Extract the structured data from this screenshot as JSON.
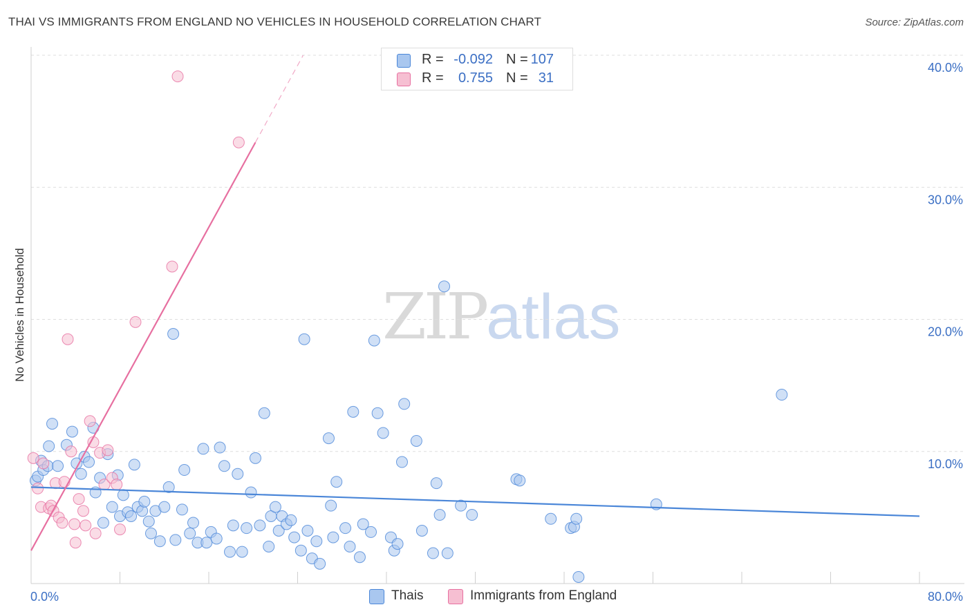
{
  "title": "THAI VS IMMIGRANTS FROM ENGLAND NO VEHICLES IN HOUSEHOLD CORRELATION CHART",
  "source": "Source: ZipAtlas.com",
  "watermark": {
    "zip": "ZIP",
    "atlas": "atlas"
  },
  "colors": {
    "blue": "#4a86d8",
    "blue_fill": "#a9c7ef",
    "pink": "#e76fa0",
    "pink_fill": "#f6bfd2",
    "axis_text": "#3b6fc4"
  },
  "legend": {
    "rows": [
      {
        "r_label": "R =",
        "r_value": "-0.092",
        "n_label": "N =",
        "n_value": "107"
      },
      {
        "r_label": "R =",
        "r_value": "0.755",
        "n_label": "N =",
        "n_value": "31"
      }
    ]
  },
  "bottom_legend": {
    "series1": "Thais",
    "series2": "Immigrants from England"
  },
  "chart_data": {
    "type": "scatter",
    "title": "THAI VS IMMIGRANTS FROM ENGLAND NO VEHICLES IN HOUSEHOLD CORRELATION CHART",
    "xlabel": "",
    "ylabel": "No Vehicles in Household",
    "xlim": [
      0,
      80
    ],
    "ylim": [
      0,
      40
    ],
    "x_tick_labels": [
      "0.0%",
      "80.0%"
    ],
    "y_ticks": [
      {
        "value": 10,
        "label": "10.0%"
      },
      {
        "value": 20,
        "label": "20.0%"
      },
      {
        "value": 30,
        "label": "30.0%"
      },
      {
        "value": 40,
        "label": "40.0%"
      }
    ],
    "series": [
      {
        "name": "Thais",
        "color": "#4a86d8",
        "points": [
          [
            0.4,
            7.8
          ],
          [
            0.6,
            8.1
          ],
          [
            0.9,
            9.3
          ],
          [
            1.1,
            8.6
          ],
          [
            1.6,
            10.4
          ],
          [
            1.9,
            12.1
          ],
          [
            1.5,
            8.9
          ],
          [
            2.4,
            8.9
          ],
          [
            3.2,
            10.5
          ],
          [
            3.7,
            11.5
          ],
          [
            4.1,
            9.1
          ],
          [
            4.5,
            8.3
          ],
          [
            4.8,
            9.6
          ],
          [
            5.2,
            9.2
          ],
          [
            5.6,
            11.8
          ],
          [
            5.8,
            6.9
          ],
          [
            6.5,
            4.6
          ],
          [
            6.9,
            9.8
          ],
          [
            7.3,
            5.8
          ],
          [
            6.2,
            8.0
          ],
          [
            7.8,
            8.2
          ],
          [
            8.0,
            5.1
          ],
          [
            8.3,
            6.7
          ],
          [
            8.7,
            5.4
          ],
          [
            9.0,
            5.1
          ],
          [
            9.3,
            9.0
          ],
          [
            9.6,
            5.8
          ],
          [
            10.0,
            5.5
          ],
          [
            10.2,
            6.2
          ],
          [
            10.6,
            4.7
          ],
          [
            10.8,
            3.8
          ],
          [
            11.2,
            5.5
          ],
          [
            11.6,
            3.2
          ],
          [
            12.0,
            5.8
          ],
          [
            12.4,
            7.3
          ],
          [
            12.8,
            18.9
          ],
          [
            13.0,
            3.3
          ],
          [
            13.6,
            5.6
          ],
          [
            13.8,
            8.6
          ],
          [
            14.3,
            3.8
          ],
          [
            14.6,
            4.6
          ],
          [
            15.0,
            3.1
          ],
          [
            15.5,
            10.2
          ],
          [
            15.8,
            3.1
          ],
          [
            16.2,
            3.9
          ],
          [
            16.7,
            3.4
          ],
          [
            17.0,
            10.3
          ],
          [
            17.4,
            8.9
          ],
          [
            17.9,
            2.4
          ],
          [
            18.2,
            4.4
          ],
          [
            18.6,
            8.3
          ],
          [
            19.0,
            2.4
          ],
          [
            19.4,
            4.2
          ],
          [
            19.8,
            6.9
          ],
          [
            20.2,
            9.5
          ],
          [
            20.6,
            4.4
          ],
          [
            21.0,
            12.9
          ],
          [
            21.4,
            2.8
          ],
          [
            21.6,
            5.1
          ],
          [
            22.0,
            5.8
          ],
          [
            22.3,
            4.0
          ],
          [
            22.6,
            5.1
          ],
          [
            23.0,
            4.5
          ],
          [
            23.4,
            4.8
          ],
          [
            23.7,
            3.5
          ],
          [
            24.3,
            2.5
          ],
          [
            24.6,
            18.5
          ],
          [
            24.9,
            4.0
          ],
          [
            25.3,
            1.9
          ],
          [
            25.7,
            3.2
          ],
          [
            26.0,
            1.5
          ],
          [
            26.8,
            11.0
          ],
          [
            27.0,
            5.9
          ],
          [
            27.2,
            3.5
          ],
          [
            27.5,
            7.7
          ],
          [
            28.3,
            4.2
          ],
          [
            28.7,
            2.8
          ],
          [
            29.0,
            13.0
          ],
          [
            29.6,
            2.0
          ],
          [
            29.9,
            4.5
          ],
          [
            30.6,
            3.9
          ],
          [
            30.9,
            18.4
          ],
          [
            31.2,
            12.9
          ],
          [
            31.7,
            11.4
          ],
          [
            32.4,
            3.5
          ],
          [
            32.7,
            2.5
          ],
          [
            33.0,
            3.0
          ],
          [
            33.4,
            9.2
          ],
          [
            33.6,
            13.6
          ],
          [
            34.7,
            10.8
          ],
          [
            35.2,
            4.0
          ],
          [
            36.2,
            2.3
          ],
          [
            36.5,
            7.6
          ],
          [
            36.8,
            5.2
          ],
          [
            37.2,
            22.5
          ],
          [
            37.5,
            2.3
          ],
          [
            38.7,
            5.9
          ],
          [
            39.7,
            5.2
          ],
          [
            43.7,
            7.9
          ],
          [
            46.8,
            4.9
          ],
          [
            48.6,
            4.2
          ],
          [
            48.9,
            4.3
          ],
          [
            49.1,
            4.9
          ],
          [
            49.3,
            0.5
          ],
          [
            56.3,
            6.0
          ],
          [
            67.6,
            14.3
          ],
          [
            44.0,
            7.8
          ]
        ],
        "trend": {
          "x": [
            0,
            80
          ],
          "y": [
            7.3,
            5.1
          ]
        }
      },
      {
        "name": "Immigrants from England",
        "color": "#e76fa0",
        "points": [
          [
            0.2,
            9.5
          ],
          [
            0.6,
            7.2
          ],
          [
            0.9,
            5.8
          ],
          [
            1.1,
            9.1
          ],
          [
            1.6,
            5.7
          ],
          [
            1.8,
            5.9
          ],
          [
            2.0,
            5.5
          ],
          [
            2.2,
            7.6
          ],
          [
            2.5,
            5.0
          ],
          [
            2.8,
            4.6
          ],
          [
            3.0,
            7.7
          ],
          [
            3.3,
            18.5
          ],
          [
            3.6,
            10.0
          ],
          [
            3.9,
            4.5
          ],
          [
            4.0,
            3.1
          ],
          [
            4.3,
            6.4
          ],
          [
            4.7,
            5.5
          ],
          [
            4.9,
            4.4
          ],
          [
            5.3,
            12.3
          ],
          [
            5.6,
            10.7
          ],
          [
            5.8,
            3.8
          ],
          [
            6.2,
            9.9
          ],
          [
            6.6,
            7.5
          ],
          [
            6.9,
            10.1
          ],
          [
            7.3,
            8.0
          ],
          [
            7.7,
            7.5
          ],
          [
            8.0,
            4.1
          ],
          [
            9.4,
            19.8
          ],
          [
            12.7,
            24.0
          ],
          [
            13.2,
            38.4
          ],
          [
            18.7,
            33.4
          ]
        ],
        "trend": {
          "x": [
            0,
            20.2
          ],
          "y": [
            2.5,
            33.4
          ]
        },
        "trend_dashed": {
          "x": [
            20.2,
            24.5
          ],
          "y": [
            33.4,
            40.0
          ]
        }
      }
    ]
  }
}
